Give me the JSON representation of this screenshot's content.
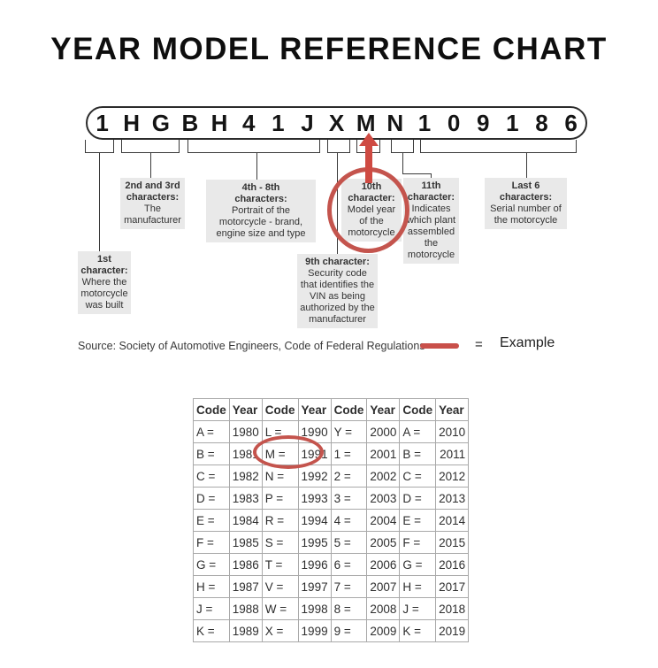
{
  "title": "YEAR MODEL REFERENCE CHART",
  "vin": {
    "characters": [
      "1",
      "H",
      "G",
      "B",
      "H",
      "4",
      "1",
      "J",
      "X",
      "M",
      "N",
      "1",
      "0",
      "9",
      "1",
      "8",
      "6"
    ]
  },
  "labels": {
    "first": {
      "heading": "1st\ncharacter:",
      "body": "Where the\nmotorcycle\nwas built"
    },
    "second_third": {
      "heading": "2nd and 3rd\ncharacters:",
      "body": "The\nmanufacturer"
    },
    "fourth_eighth": {
      "heading": "4th - 8th\ncharacters:",
      "body": "Portrait of the\nmotorcycle - brand,\nengine size and type"
    },
    "ninth": {
      "heading": "9th character:",
      "body": "Security code\nthat identifies the\nVIN as being\nauthorized by the\nmanufacturer"
    },
    "tenth": {
      "heading": "10th\ncharacter:",
      "body": "Model year\nof the\nmotorcycle"
    },
    "eleventh": {
      "heading": "11th\ncharacter:",
      "body": "Indicates\nwhich plant\nassembled\nthe\nmotorcycle"
    },
    "last_six": {
      "heading": "Last 6\ncharacters:",
      "body": "Serial number of\nthe motorcycle"
    }
  },
  "source_line": "Source:  Society of Automotive Engineers, Code of Federal Regulations",
  "legend": {
    "equals": "=",
    "label": "Example"
  },
  "colors": {
    "annotation_red": "#c4544d",
    "arrow_red": "#cf4a42",
    "box_gray": "#e9e9e9"
  },
  "table": {
    "headers": [
      "Code",
      "Year",
      "Code",
      "Year",
      "Code",
      "Year",
      "Code",
      "Year"
    ],
    "rows": [
      [
        "A =",
        "1980",
        "L =",
        "1990",
        "Y =",
        "2000",
        "A =",
        "2010"
      ],
      [
        "B =",
        "1981",
        "M =",
        "1991",
        "1 =",
        "2001",
        "B =",
        "2011"
      ],
      [
        "C =",
        "1982",
        "N =",
        "1992",
        "2 =",
        "2002",
        "C =",
        "2012"
      ],
      [
        "D =",
        "1983",
        "P =",
        "1993",
        "3 =",
        "2003",
        "D =",
        "2013"
      ],
      [
        "E =",
        "1984",
        "R =",
        "1994",
        "4 =",
        "2004",
        "E =",
        "2014"
      ],
      [
        "F =",
        "1985",
        "S =",
        "1995",
        "5 =",
        "2005",
        "F =",
        "2015"
      ],
      [
        "G =",
        "1986",
        "T =",
        "1996",
        "6 =",
        "2006",
        "G =",
        "2016"
      ],
      [
        "H =",
        "1987",
        "V =",
        "1997",
        "7 =",
        "2007",
        "H =",
        "2017"
      ],
      [
        "J =",
        "1988",
        "W =",
        "1998",
        "8 =",
        "2008",
        "J =",
        "2018"
      ],
      [
        "K =",
        "1989",
        "X =",
        "1999",
        "9 =",
        "2009",
        "K =",
        "2019"
      ]
    ]
  }
}
